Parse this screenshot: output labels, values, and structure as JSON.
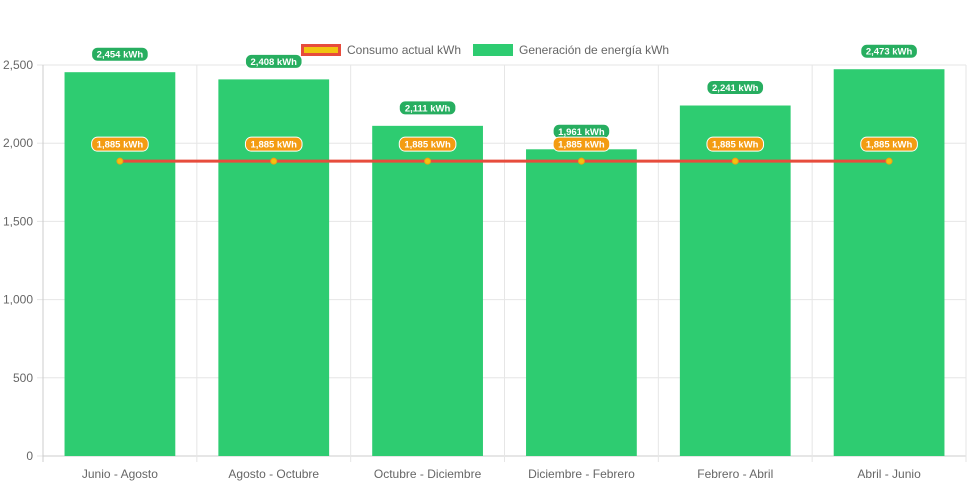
{
  "chart_data": {
    "type": "bar",
    "categories": [
      "Junio - Agosto",
      "Agosto - Octubre",
      "Octubre - Diciembre",
      "Diciembre - Febrero",
      "Febrero - Abril",
      "Abril - Junio"
    ],
    "series": [
      {
        "name": "Consumo actual kWh",
        "type": "line",
        "values": [
          1885,
          1885,
          1885,
          1885,
          1885,
          1885
        ],
        "data_labels": [
          "1,885 kWh",
          "1,885 kWh",
          "1,885 kWh",
          "1,885 kWh",
          "1,885 kWh",
          "1,885 kWh"
        ],
        "line_color": "#e74c3c",
        "fill_color": "#f1c40f",
        "label_bg": "#f39c12"
      },
      {
        "name": "Generación de energía kWh",
        "type": "bar",
        "values": [
          2454,
          2408,
          2111,
          1961,
          2241,
          2473
        ],
        "data_labels": [
          "2,454 kWh",
          "2,408 kWh",
          "2,111 kWh",
          "1,961 kWh",
          "2,241 kWh",
          "2,473 kWh"
        ],
        "fill_color": "#2ecc71",
        "label_bg": "#27ae60"
      }
    ],
    "y_ticks": [
      "0",
      "500",
      "1,000",
      "1,500",
      "2,000",
      "2,500"
    ],
    "ylim": [
      0,
      2500
    ],
    "grid": true,
    "legend_position": "top"
  }
}
